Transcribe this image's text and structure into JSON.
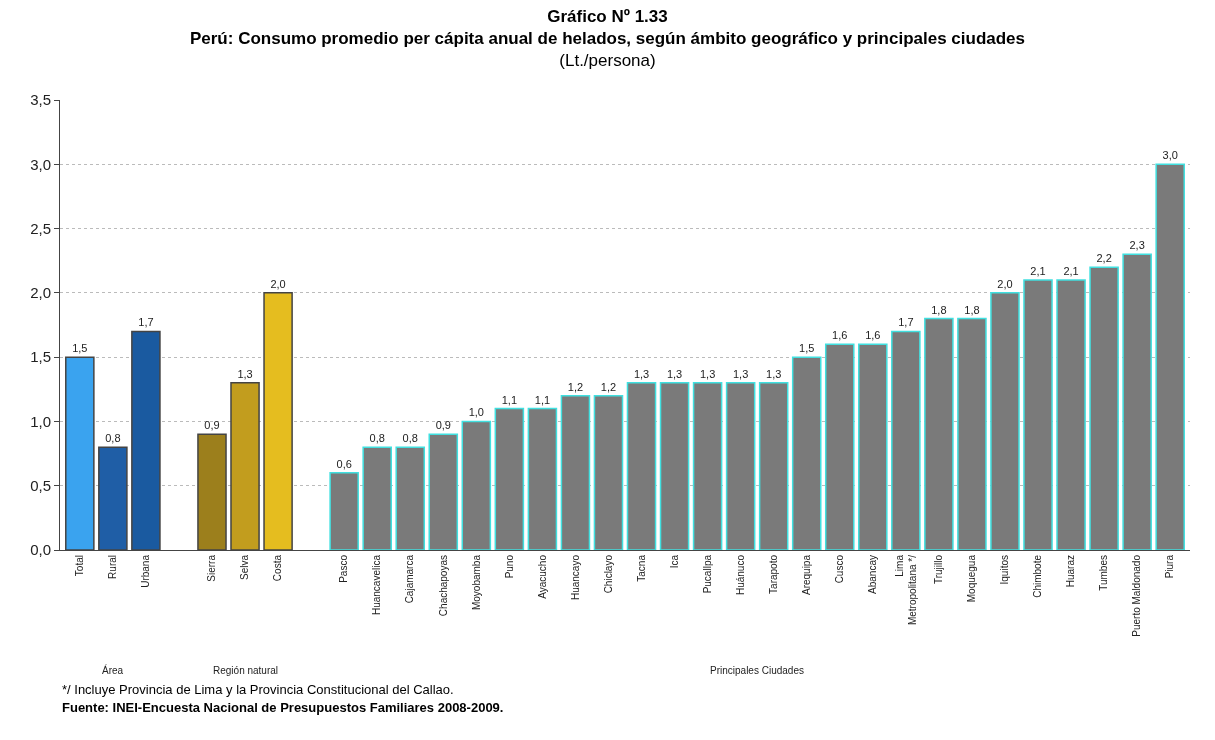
{
  "chart_data": {
    "type": "bar",
    "title": "Gráfico Nº 1.33\nPerú: Consumo promedio per cápita anual de helados, según ámbito geográfico y principales ciudades",
    "subtitle": "(Lt./persona)",
    "categories": [
      "Total",
      "Rural",
      "Urbana",
      null,
      "Sierra",
      "Selva",
      "Costa",
      null,
      "Pasco",
      "Huancavelica",
      "Cajamarca",
      "Chachapoyas",
      "Moyobamba",
      "Puno",
      "Ayacucho",
      "Huancayo",
      "Chiclayo",
      "Tacna",
      "Ica",
      "Pucallpa",
      "Huánuco",
      "Tarapoto",
      "Arequipa",
      "Cusco",
      "Abancay",
      "Lima Metropolitana */",
      "Trujillo",
      "Moquegua",
      "Iquitos",
      "Chimbote",
      "Huaraz",
      "Tumbes",
      "Puerto Maldonado",
      "Piura"
    ],
    "values": [
      1.5,
      0.8,
      1.7,
      null,
      0.9,
      1.3,
      2.0,
      null,
      0.6,
      0.8,
      0.8,
      0.9,
      1.0,
      1.1,
      1.1,
      1.2,
      1.2,
      1.3,
      1.3,
      1.3,
      1.3,
      1.3,
      1.5,
      1.6,
      1.6,
      1.7,
      1.8,
      1.8,
      2.0,
      2.1,
      2.1,
      2.2,
      2.3,
      3.0
    ],
    "value_labels": [
      "1,5",
      "0,8",
      "1,7",
      null,
      "0,9",
      "1,3",
      "2,0",
      null,
      "0,6",
      "0,8",
      "0,8",
      "0,9",
      "1,0",
      "1,1",
      "1,1",
      "1,2",
      "1,2",
      "1,3",
      "1,3",
      "1,3",
      "1,3",
      "1,3",
      "1,5",
      "1,6",
      "1,6",
      "1,7",
      "1,8",
      "1,8",
      "2,0",
      "2,1",
      "2,1",
      "2,2",
      "2,3",
      "3,0"
    ],
    "colors": [
      "#3aa3ef",
      "#1f5ea6",
      "#1a5aa0",
      null,
      "#9c7f1c",
      "#c29d1e",
      "#e5bd1f",
      null,
      "#7a7a7a",
      "#7a7a7a",
      "#7a7a7a",
      "#7a7a7a",
      "#7a7a7a",
      "#7a7a7a",
      "#7a7a7a",
      "#7a7a7a",
      "#7a7a7a",
      "#7a7a7a",
      "#7a7a7a",
      "#7a7a7a",
      "#7a7a7a",
      "#7a7a7a",
      "#7a7a7a",
      "#7a7a7a",
      "#7a7a7a",
      "#7a7a7a",
      "#7a7a7a",
      "#7a7a7a",
      "#7a7a7a",
      "#7a7a7a",
      "#7a7a7a",
      "#7a7a7a",
      "#7a7a7a",
      "#7a7a7a"
    ],
    "ylim": [
      0,
      3.5
    ],
    "yticks": [
      {
        "value": 0,
        "label": "0,0"
      },
      {
        "value": 0.5,
        "label": "0,5"
      },
      {
        "value": 1,
        "label": "1,0"
      },
      {
        "value": 1.5,
        "label": "1,5"
      },
      {
        "value": 2,
        "label": "2,0"
      },
      {
        "value": 2.5,
        "label": "2,5"
      },
      {
        "value": 3,
        "label": "3,0"
      },
      {
        "value": 3.5,
        "label": "3,5"
      }
    ],
    "grid": "y",
    "annotations": [
      "Área",
      "Región natural",
      "Principales Ciudades",
      "*/ Incluye Provincia de Lima y la Provincia Constitucional del Callao.",
      "Fuente: INEI-Encuesta Nacional de Presupuestos Familiares 2008-2009."
    ]
  }
}
